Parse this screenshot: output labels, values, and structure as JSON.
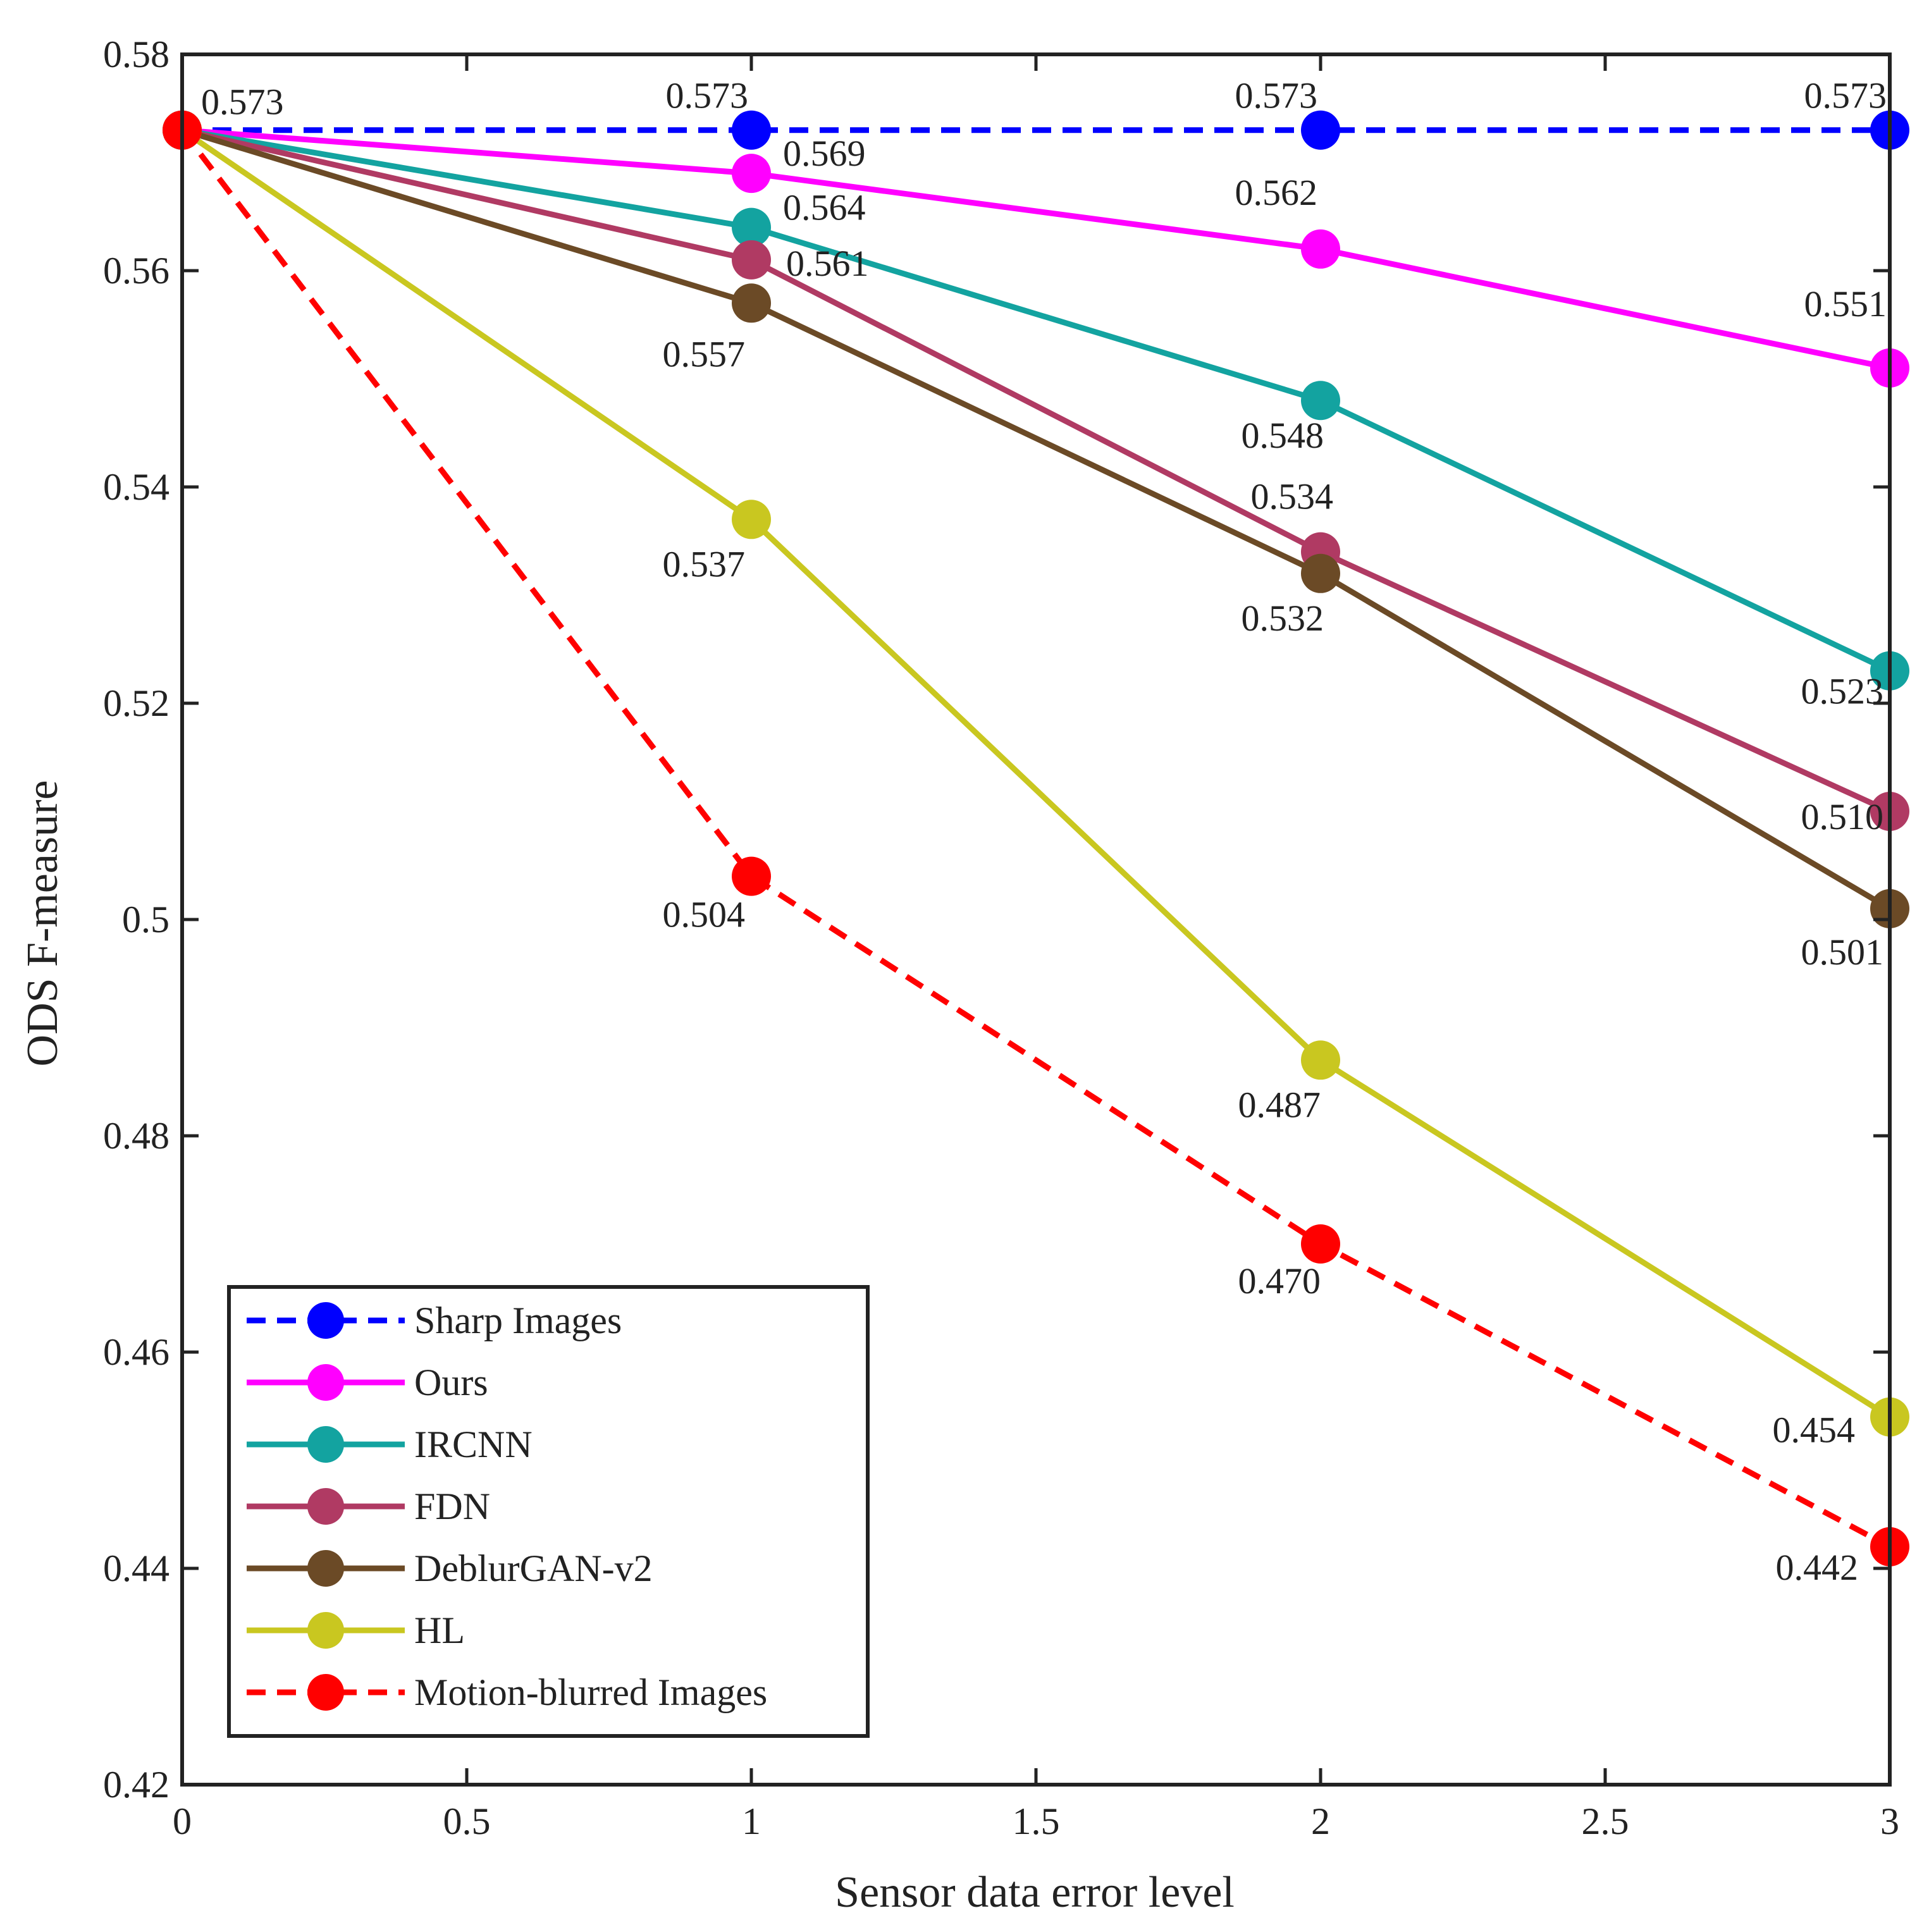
{
  "chart_data": {
    "type": "line",
    "title": "",
    "xlabel": "Sensor data error level",
    "ylabel": "ODS F-measure",
    "xlim": [
      0,
      3
    ],
    "ylim": [
      0.42,
      0.58
    ],
    "xticks": [
      0,
      0.5,
      1,
      1.5,
      2,
      2.5,
      3
    ],
    "xtick_labels": [
      "0",
      "0.5",
      "1",
      "1.5",
      "2",
      "2.5",
      "3"
    ],
    "yticks": [
      0.42,
      0.44,
      0.46,
      0.48,
      0.5,
      0.52,
      0.54,
      0.56,
      0.58
    ],
    "ytick_labels": [
      "0.42",
      "0.44",
      "0.46",
      "0.48",
      "0.5",
      "0.52",
      "0.54",
      "0.56",
      "0.58"
    ],
    "grid": false,
    "legend_position": "bottom-left",
    "x": [
      0,
      1,
      2,
      3
    ],
    "series": [
      {
        "name": "Sharp Images",
        "color": "#0000ff",
        "dashed": true,
        "values": [
          0.573,
          0.573,
          0.573,
          0.573
        ],
        "labels": [
          "0.573",
          "0.573",
          "0.573",
          "0.573"
        ]
      },
      {
        "name": "Ours",
        "color": "#ff00ff",
        "dashed": false,
        "values": [
          0.573,
          0.569,
          0.562,
          0.551
        ],
        "labels": [
          "",
          "0.569",
          "0.562",
          "0.551"
        ]
      },
      {
        "name": "IRCNN",
        "color": "#13a3a0",
        "dashed": false,
        "values": [
          0.573,
          0.564,
          0.548,
          0.523
        ],
        "labels": [
          "",
          "0.564",
          "0.548",
          "0.523"
        ]
      },
      {
        "name": "FDN",
        "color": "#b03a63",
        "dashed": false,
        "values": [
          0.573,
          0.561,
          0.534,
          0.51
        ],
        "labels": [
          "",
          "0.561",
          "0.534",
          "0.510"
        ]
      },
      {
        "name": "DeblurGAN-v2",
        "color": "#6b4a26",
        "dashed": false,
        "values": [
          0.573,
          0.557,
          0.532,
          0.501
        ],
        "labels": [
          "",
          "0.557",
          "0.532",
          "0.501"
        ]
      },
      {
        "name": "HL",
        "color": "#c9c720",
        "dashed": false,
        "values": [
          0.573,
          0.537,
          0.487,
          0.454
        ],
        "labels": [
          "",
          "0.537",
          "0.487",
          "0.454"
        ]
      },
      {
        "name": "Motion-blurred Images",
        "color": "#ff0000",
        "dashed": true,
        "values": [
          0.573,
          0.504,
          0.47,
          0.442
        ],
        "labels": [
          "",
          "0.504",
          "0.470",
          "0.442"
        ]
      }
    ]
  }
}
